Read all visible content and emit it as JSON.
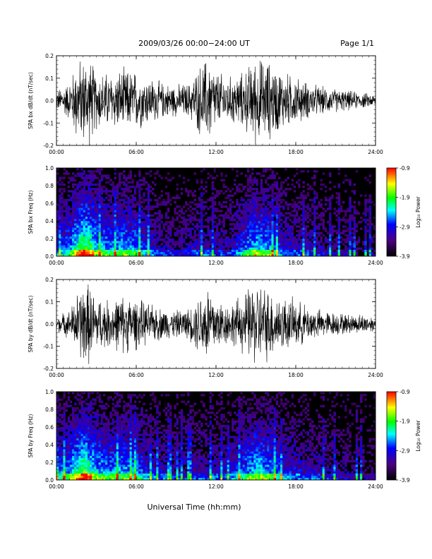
{
  "header": {
    "title": "2009/03/26  00:00−24:00 UT",
    "page": "Page 1/1"
  },
  "xlabel": "Universal Time (hh:mm)",
  "colorbar": {
    "label": "Log₁₀ Power",
    "ticks": [
      "-0.9",
      "-1.9",
      "-2.9",
      "-3.9"
    ],
    "colors": [
      "#000000",
      "#4b0082",
      "#0000ff",
      "#00ffff",
      "#00ff00",
      "#ffff00",
      "#ff0000"
    ]
  },
  "chart_data": [
    {
      "type": "line",
      "ylabel": "SPA bx dB/dt (nT/sec)",
      "xlim": [
        "00:00",
        "24:00"
      ],
      "ylim": [
        -0.2,
        0.2
      ],
      "x_ticks": [
        "00:00",
        "06:00",
        "12:00",
        "18:00",
        "24:00"
      ],
      "y_ticks": [
        "-0.2",
        "-0.1",
        "0.0",
        "0.1",
        "0.2"
      ],
      "envelope": {
        "hours": [
          0,
          1,
          1.5,
          2,
          2.5,
          3,
          4,
          5,
          6,
          7,
          8,
          9,
          10,
          11,
          11.5,
          12,
          13,
          14,
          15,
          16,
          17,
          18,
          19,
          20,
          21,
          22,
          23,
          24
        ],
        "amplitude": [
          0.05,
          0.1,
          0.2,
          0.22,
          0.22,
          0.15,
          0.14,
          0.16,
          0.15,
          0.12,
          0.09,
          0.08,
          0.09,
          0.2,
          0.22,
          0.15,
          0.12,
          0.14,
          0.22,
          0.2,
          0.15,
          0.12,
          0.09,
          0.07,
          0.06,
          0.05,
          0.04,
          0.03
        ]
      }
    },
    {
      "type": "heatmap",
      "ylabel": "SPA bx Freq (Hz)",
      "xlim": [
        "00:00",
        "24:00"
      ],
      "ylim": [
        0.0,
        1.0
      ],
      "x_ticks": [
        "00:00",
        "06:00",
        "12:00",
        "18:00",
        "24:00"
      ],
      "y_ticks": [
        "0.0",
        "0.2",
        "0.4",
        "0.6",
        "0.8",
        "1.0"
      ],
      "zlim": [
        -3.9,
        -0.9
      ],
      "activity": {
        "hours": [
          0,
          1,
          2,
          2.5,
          3,
          4,
          5,
          6,
          7,
          8,
          9,
          10,
          11,
          12,
          13,
          14,
          15,
          16,
          17,
          18,
          19,
          20,
          21,
          22,
          23,
          24
        ],
        "level": [
          0.4,
          0.6,
          1.0,
          0.95,
          0.7,
          0.6,
          0.65,
          0.6,
          0.4,
          0.3,
          0.25,
          0.3,
          0.35,
          0.3,
          0.3,
          0.5,
          0.75,
          0.65,
          0.4,
          0.35,
          0.3,
          0.25,
          0.2,
          0.2,
          0.15,
          0.15
        ]
      }
    },
    {
      "type": "line",
      "ylabel": "SPA by dB/dt (nT/sec)",
      "xlim": [
        "00:00",
        "24:00"
      ],
      "ylim": [
        -0.2,
        0.2
      ],
      "x_ticks": [
        "00:00",
        "06:00",
        "12:00",
        "18:00",
        "24:00"
      ],
      "y_ticks": [
        "-0.2",
        "-0.1",
        "0.0",
        "0.1",
        "0.2"
      ],
      "envelope": {
        "hours": [
          0,
          1,
          1.5,
          2,
          2.5,
          3,
          4,
          5,
          6,
          7,
          8,
          9,
          10,
          11,
          11.5,
          12,
          13,
          14,
          15,
          16,
          17,
          18,
          19,
          20,
          21,
          22,
          23,
          24
        ],
        "amplitude": [
          0.04,
          0.07,
          0.15,
          0.22,
          0.2,
          0.14,
          0.12,
          0.15,
          0.13,
          0.1,
          0.08,
          0.07,
          0.08,
          0.18,
          0.22,
          0.14,
          0.1,
          0.15,
          0.22,
          0.18,
          0.14,
          0.12,
          0.09,
          0.07,
          0.06,
          0.05,
          0.05,
          0.04
        ]
      }
    },
    {
      "type": "heatmap",
      "ylabel": "SPA by Freq (Hz)",
      "xlim": [
        "00:00",
        "24:00"
      ],
      "ylim": [
        0.0,
        1.0
      ],
      "x_ticks": [
        "00:00",
        "06:00",
        "12:00",
        "18:00",
        "24:00"
      ],
      "y_ticks": [
        "0.0",
        "0.2",
        "0.4",
        "0.6",
        "0.8",
        "1.0"
      ],
      "zlim": [
        -3.9,
        -0.9
      ],
      "activity": {
        "hours": [
          0,
          1,
          2,
          2.5,
          3,
          4,
          5,
          6,
          7,
          8,
          9,
          10,
          11,
          12,
          13,
          14,
          15,
          16,
          17,
          18,
          19,
          20,
          21,
          22,
          23,
          24
        ],
        "level": [
          0.45,
          0.65,
          1.0,
          0.9,
          0.7,
          0.6,
          0.65,
          0.6,
          0.4,
          0.35,
          0.3,
          0.3,
          0.35,
          0.35,
          0.35,
          0.55,
          0.75,
          0.65,
          0.45,
          0.4,
          0.35,
          0.3,
          0.25,
          0.25,
          0.2,
          0.2
        ]
      }
    }
  ]
}
